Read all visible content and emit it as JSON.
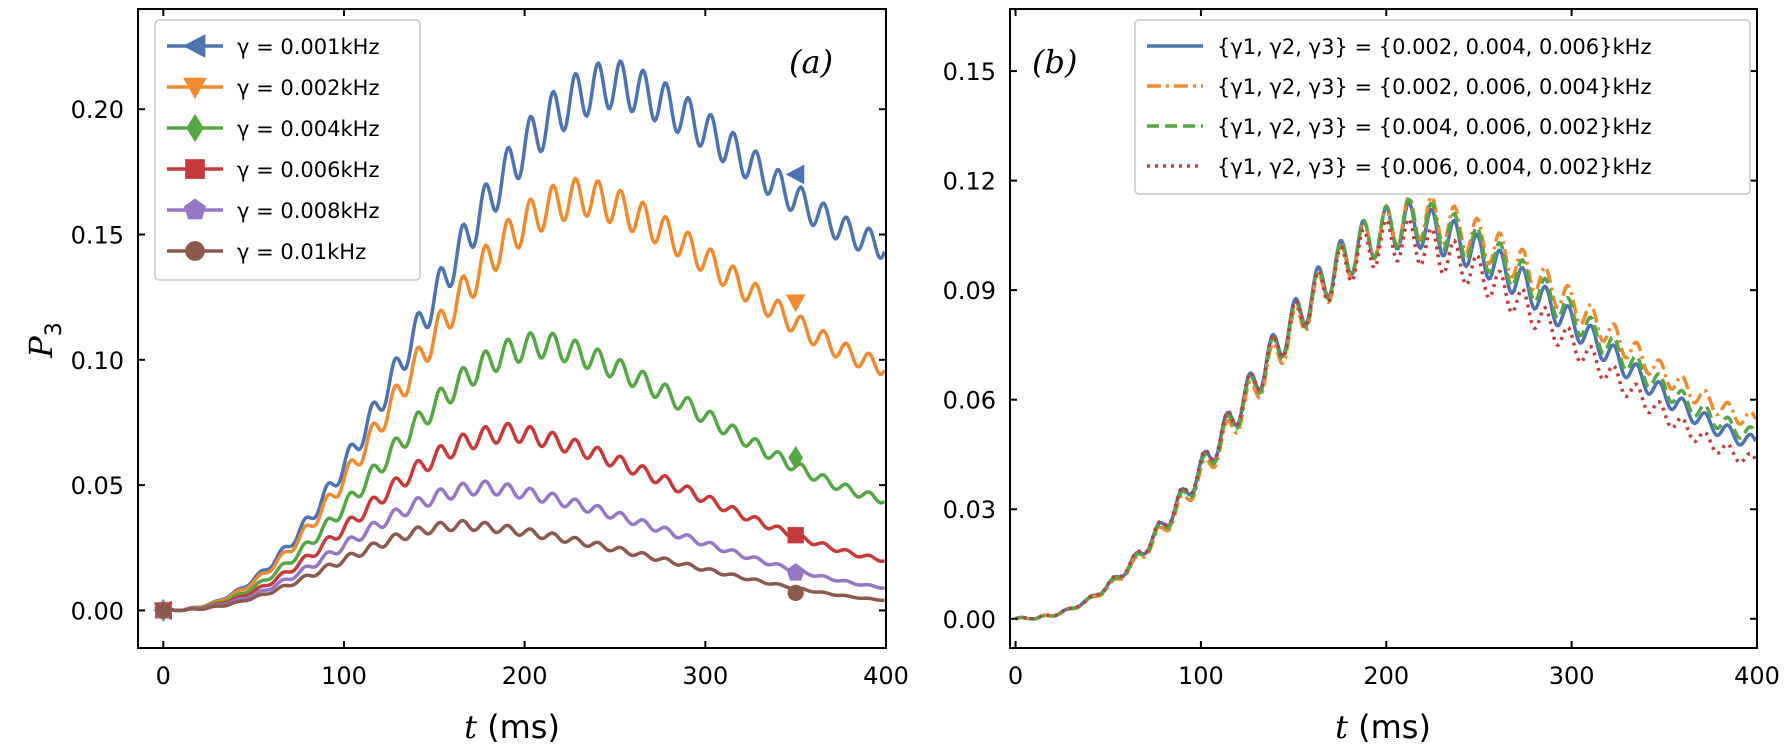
{
  "chart_data": [
    {
      "type": "line",
      "panel_label": "(a)",
      "xlabel": "t (ms)",
      "ylabel": "P3",
      "xlim": [
        -14,
        400
      ],
      "ylim": [
        -0.015,
        0.24
      ],
      "xticks": [
        0,
        100,
        200,
        300,
        400
      ],
      "xtick_labels": [
        "0",
        "100",
        "200",
        "300",
        "400"
      ],
      "yticks": [
        0,
        0.05,
        0.1,
        0.15,
        0.2
      ],
      "ytick_labels": [
        "0.00",
        "0.05",
        "0.10",
        "0.15",
        "0.20"
      ],
      "legend_position": "top-left",
      "series": [
        {
          "name": "γ = 0.001kHz",
          "color": "#4c72b0",
          "style": "solid",
          "marker": "triangle-left",
          "peak": 0.21,
          "peak_t": 252,
          "end_value": 0.145,
          "marker_points": [
            [
              0,
              0.0
            ],
            [
              350,
              0.174
            ]
          ]
        },
        {
          "name": "γ = 0.002kHz",
          "color": "#ef8a2e",
          "style": "solid",
          "marker": "triangle-down",
          "peak": 0.165,
          "peak_t": 235,
          "end_value": 0.097,
          "marker_points": [
            [
              0,
              0.0
            ],
            [
              350,
              0.123
            ]
          ]
        },
        {
          "name": "γ = 0.004kHz",
          "color": "#55a645",
          "style": "solid",
          "marker": "diamond",
          "peak": 0.106,
          "peak_t": 212,
          "end_value": 0.044,
          "marker_points": [
            [
              0,
              0.0
            ],
            [
              350,
              0.061
            ]
          ]
        },
        {
          "name": "γ = 0.006kHz",
          "color": "#c83a3a",
          "style": "solid",
          "marker": "square",
          "peak": 0.071,
          "peak_t": 194,
          "end_value": 0.02,
          "marker_points": [
            [
              0,
              0.0
            ],
            [
              350,
              0.03
            ]
          ]
        },
        {
          "name": "γ = 0.008kHz",
          "color": "#9677c6",
          "style": "solid",
          "marker": "pentagon",
          "peak": 0.049,
          "peak_t": 180,
          "end_value": 0.009,
          "marker_points": [
            [
              0,
              0.0
            ],
            [
              350,
              0.015
            ]
          ]
        },
        {
          "name": "γ = 0.01kHz",
          "color": "#8c5a4d",
          "style": "solid",
          "marker": "circle",
          "peak": 0.034,
          "peak_t": 168,
          "end_value": 0.004,
          "marker_points": [
            [
              0,
              0.0
            ],
            [
              350,
              0.007
            ]
          ]
        }
      ]
    },
    {
      "type": "line",
      "panel_label": "(b)",
      "xlabel": "t (ms)",
      "ylabel": "",
      "xlim": [
        -3,
        400
      ],
      "ylim": [
        -0.008,
        0.167
      ],
      "xticks": [
        0,
        100,
        200,
        300,
        400
      ],
      "xtick_labels": [
        "0",
        "100",
        "200",
        "300",
        "400"
      ],
      "yticks": [
        0,
        0.03,
        0.06,
        0.09,
        0.12,
        0.15
      ],
      "ytick_labels": [
        "0.00",
        "0.03",
        "0.06",
        "0.09",
        "0.12",
        "0.15"
      ],
      "legend_position": "top-right",
      "series": [
        {
          "name": "{γ1, γ2, γ3} = {0.002, 0.004, 0.006}kHz",
          "color": "#4c72b0",
          "style": "solid",
          "peak": 0.108,
          "peak_t": 215,
          "end_value": 0.048
        },
        {
          "name": "{γ1, γ2, γ3} = {0.002, 0.006, 0.004}kHz",
          "color": "#ef8a2e",
          "style": "dashdot",
          "peak": 0.11,
          "peak_t": 222,
          "end_value": 0.054
        },
        {
          "name": "{γ1, γ2, γ3} = {0.004, 0.006, 0.002}kHz",
          "color": "#55a645",
          "style": "dashed",
          "peak": 0.109,
          "peak_t": 218,
          "end_value": 0.05
        },
        {
          "name": "{γ1, γ2, γ3} = {0.006, 0.004, 0.002}kHz",
          "color": "#c83a3a",
          "style": "dotted",
          "peak": 0.104,
          "peak_t": 210,
          "end_value": 0.043
        }
      ]
    }
  ]
}
